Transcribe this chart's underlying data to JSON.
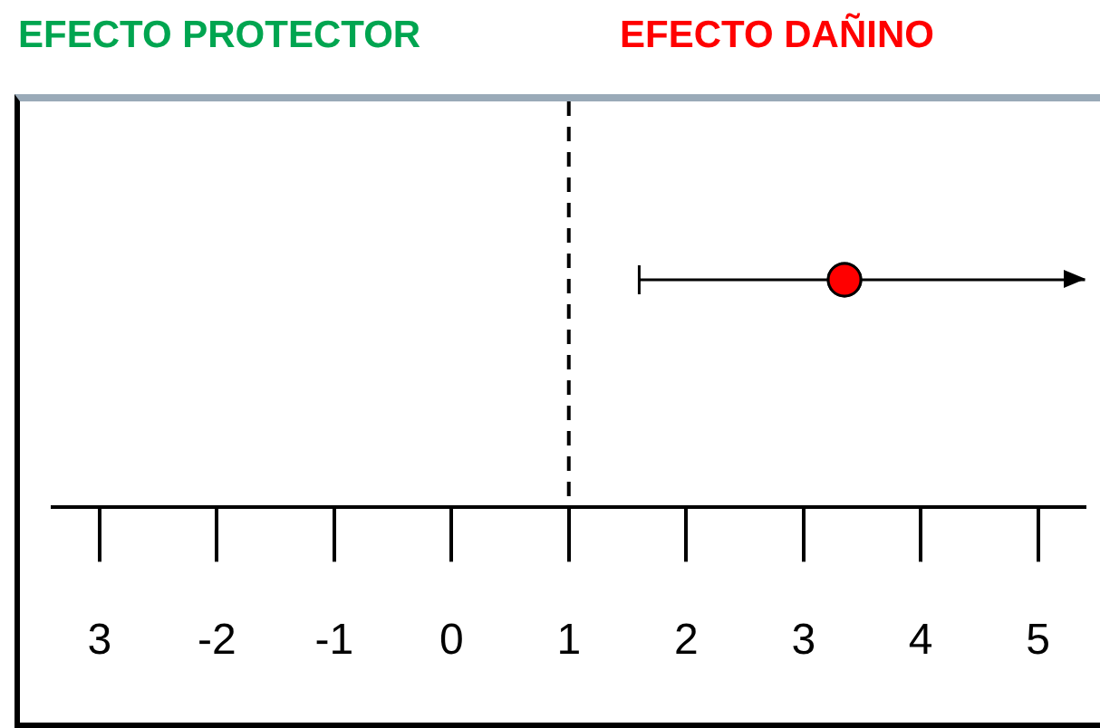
{
  "chart_data": {
    "type": "scatter",
    "orientation": "horizontal",
    "categories": [
      null
    ],
    "series": [
      {
        "color": "#ff0000",
        "values": [
          3.35
        ],
        "errors": [
          [
            1.6,
            5.4
          ]
        ]
      }
    ],
    "xlim": [
      -3.4,
      5.4
    ],
    "xticks": [
      {
        "value": -3,
        "label": "3"
      },
      -2,
      -1,
      0,
      1,
      2,
      3,
      4,
      5
    ],
    "ref_lines": [
      {
        "axis": "x",
        "value": 1,
        "line_style": "dashed",
        "color": "#000000"
      }
    ],
    "annotations": [
      "EFECTO PROTECTOR",
      "EFECTO DAÑINO"
    ],
    "marker": "circle",
    "tick_labels": "x",
    "grid": false,
    "legend": false
  }
}
